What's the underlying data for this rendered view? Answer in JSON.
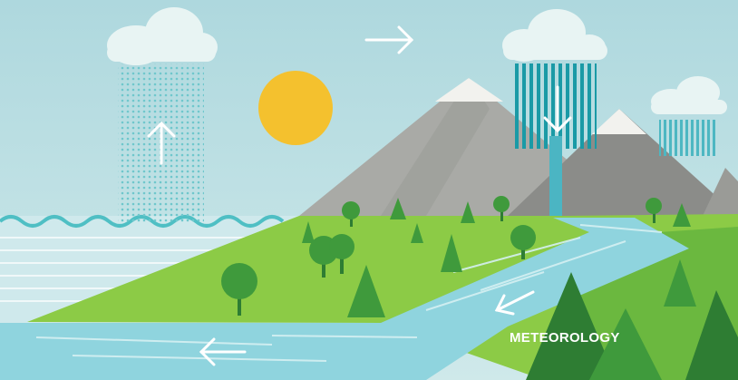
{
  "caption": "METEOROLOGY",
  "colors": {
    "sky_top": "#aed8de",
    "sky_bottom": "#cfe9ea",
    "cloud": "#e8f4f3",
    "sun": "#f4c12e",
    "sea": "#cfe9ec",
    "sea_wave": "#4fbfc4",
    "rain_light": "#6fc7cc",
    "rain_dark": "#1a9aa6",
    "mountain_light": "#a9aaa6",
    "mountain_dark": "#8b8c89",
    "snow": "#f2f2ee",
    "grass_light": "#8ccb46",
    "grass_dark": "#4fa83c",
    "river": "#8fd4de",
    "river_stripe": "#d5f0f2",
    "tree": "#3f9a3c",
    "tree_dark": "#2e7d33",
    "arrow": "#ffffff"
  },
  "icons": {
    "arrow_up": "arrow-up-icon",
    "arrow_right": "arrow-right-icon",
    "arrow_down": "arrow-down-icon",
    "arrow_down_left": "arrow-down-left-icon",
    "arrow_left": "arrow-left-icon"
  }
}
